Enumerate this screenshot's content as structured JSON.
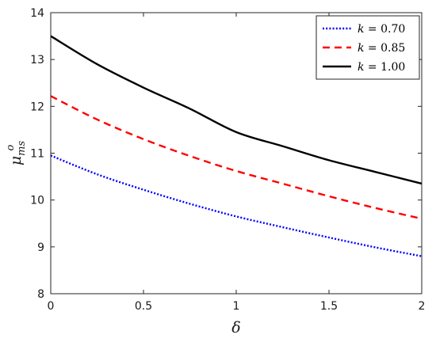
{
  "chart_data": {
    "type": "line",
    "xlabel": "δ",
    "ylabel": {
      "base": "μ",
      "sup": "o",
      "sub": "ms"
    },
    "xlim": [
      0,
      2
    ],
    "ylim": [
      8,
      14
    ],
    "xticks": [
      0,
      0.5,
      1,
      1.5,
      2
    ],
    "xtick_labels": [
      "0",
      "0.5",
      "1",
      "1.5",
      "2"
    ],
    "yticks": [
      8,
      9,
      10,
      11,
      12,
      13,
      14
    ],
    "ytick_labels": [
      "8",
      "9",
      "10",
      "11",
      "12",
      "13",
      "14"
    ],
    "grid": false,
    "legend_position": "top-right",
    "series": [
      {
        "name": "k = 0.70",
        "legend_var": "k",
        "legend_value": "0.70",
        "color": "#0000ff",
        "style": "dotted",
        "x": [
          0,
          0.25,
          0.5,
          0.75,
          1,
          1.25,
          1.5,
          1.75,
          2
        ],
        "y": [
          10.95,
          10.55,
          10.22,
          9.92,
          9.65,
          9.42,
          9.2,
          8.99,
          8.8
        ]
      },
      {
        "name": "k = 0.85",
        "legend_var": "k",
        "legend_value": "0.85",
        "color": "#ff0000",
        "style": "dashed",
        "x": [
          0,
          0.25,
          0.5,
          0.75,
          1,
          1.25,
          1.5,
          1.75,
          2
        ],
        "y": [
          12.22,
          11.72,
          11.3,
          10.94,
          10.62,
          10.35,
          10.08,
          9.83,
          9.6
        ]
      },
      {
        "name": "k = 1.00",
        "legend_var": "k",
        "legend_value": "1.00",
        "color": "#000000",
        "style": "solid",
        "x": [
          0,
          0.25,
          0.5,
          0.75,
          1,
          1.25,
          1.5,
          1.75,
          2
        ],
        "y": [
          13.5,
          12.9,
          12.4,
          11.95,
          11.45,
          11.15,
          10.85,
          10.6,
          10.35
        ]
      }
    ]
  }
}
